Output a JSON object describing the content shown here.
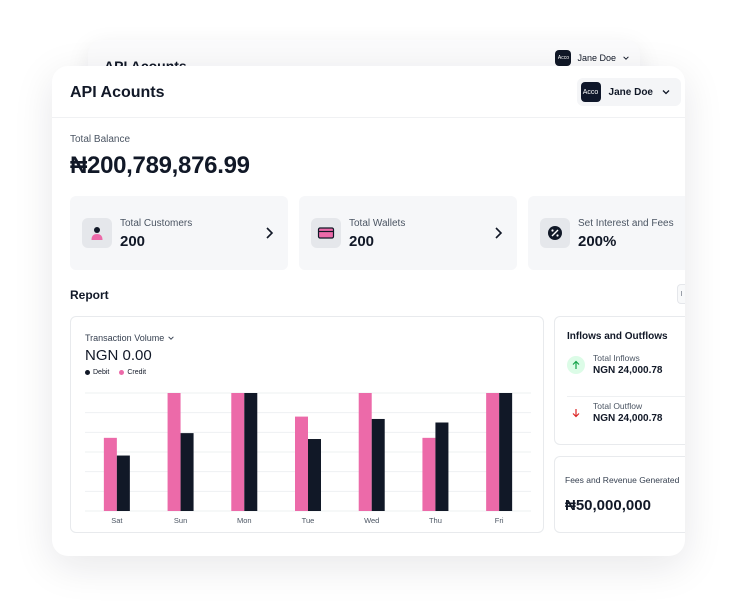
{
  "back_card": {
    "title": "API Acounts",
    "user_name": "Jane Doe",
    "avatar_text": "Acco"
  },
  "header": {
    "title": "API Acounts",
    "user_name": "Jane Doe",
    "avatar_text": "Acco",
    "icons": {
      "dropdown": "chevron-down-icon"
    }
  },
  "balance": {
    "label": "Total Balance",
    "value": "₦200,789,876.99"
  },
  "stats": [
    {
      "label": "Total Customers",
      "value": "200",
      "icon": "user-icon",
      "arrow": "chevron-right-icon"
    },
    {
      "label": "Total Wallets",
      "value": "200",
      "icon": "wallet-icon",
      "arrow": "chevron-right-icon"
    },
    {
      "label": "Set Interest and Fees",
      "value": "200%",
      "icon": "percent-icon"
    }
  ],
  "report": {
    "title": "Report",
    "tab_label": "I"
  },
  "transaction": {
    "select_label": "Transaction Volume",
    "value": "NGN 0.00",
    "legend": {
      "debit": "Debit",
      "credit": "Credit"
    }
  },
  "chart_data": {
    "type": "bar",
    "categories": [
      "Sat",
      "Sun",
      "Mon",
      "Tue",
      "Wed",
      "Thu",
      "Fri"
    ],
    "series": [
      {
        "name": "Credit",
        "values": [
          62,
          100,
          100,
          80,
          100,
          62,
          100
        ]
      },
      {
        "name": "Debit",
        "values": [
          47,
          66,
          100,
          61,
          78,
          75,
          100
        ]
      }
    ],
    "ylim": [
      0,
      100
    ],
    "grid": true,
    "colors": {
      "Credit": "#ec6aa9",
      "Debit": "#111827"
    },
    "xlabel": "",
    "ylabel": ""
  },
  "inflows": {
    "title": "Inflows and Outflows",
    "inflow_label": "Total Inflows",
    "inflow_value": "NGN 24,000.78",
    "outflow_label": "Total Outflow",
    "outflow_value": "NGN 24,000.78"
  },
  "fees": {
    "label": "Fees and Revenue Generated",
    "value": "₦50,000,000"
  },
  "colors": {
    "accent_pink": "#ec6aa9",
    "dark": "#111827",
    "inflow_green": "#16a34a",
    "outflow_red": "#dc2626"
  }
}
